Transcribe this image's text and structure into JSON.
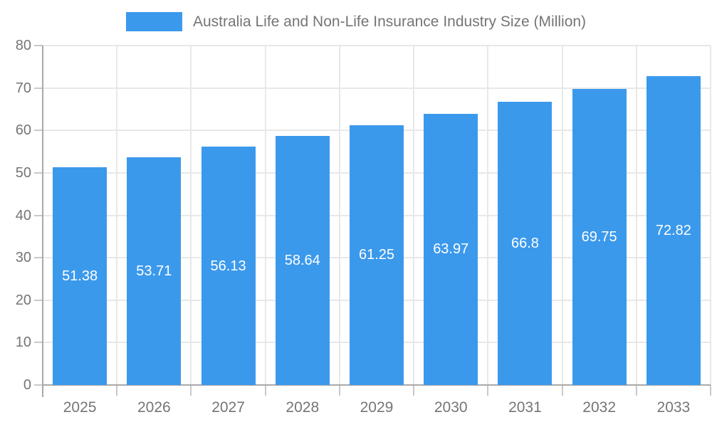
{
  "chart_data": {
    "type": "bar",
    "title": "Australia Life and Non-Life Insurance Industry Size (Million)",
    "categories": [
      "2025",
      "2026",
      "2027",
      "2028",
      "2029",
      "2030",
      "2031",
      "2032",
      "2033"
    ],
    "values": [
      51.38,
      53.71,
      56.13,
      58.64,
      61.25,
      63.97,
      66.8,
      69.75,
      72.82
    ],
    "bar_value_labels": [
      "51.38",
      "53.71",
      "56.13",
      "58.64",
      "61.25",
      "63.97",
      "66.8",
      "69.75",
      "72.82"
    ],
    "xlabel": "",
    "ylabel": "",
    "ylim": [
      0,
      80
    ],
    "ytick_step": 10,
    "ytick_labels": [
      "0",
      "10",
      "20",
      "30",
      "40",
      "50",
      "60",
      "70",
      "80"
    ],
    "grid": true,
    "legend_position": "top",
    "colors": {
      "bar": "#3b99ec",
      "gridline": "#e8e8e8",
      "tick": "#c9c9c9",
      "axis": "#a9a9a9",
      "text": "#757575",
      "bar_label": "#ffffff",
      "background": "#ffffff"
    }
  }
}
